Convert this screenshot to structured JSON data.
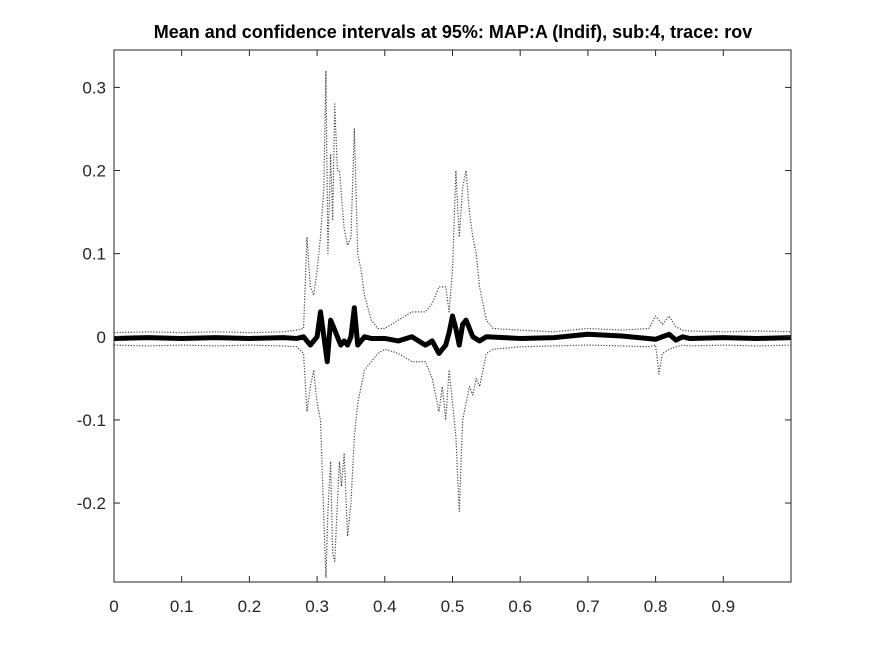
{
  "chart_data": {
    "type": "line",
    "title": "Mean and confidence intervals at 95%: MAP:A (Indif), sub:4, trace: rov",
    "xlabel": "",
    "ylabel": "",
    "xlim": [
      0,
      1
    ],
    "ylim": [
      -0.295,
      0.345
    ],
    "x_ticks": [
      0,
      0.1,
      0.2,
      0.3,
      0.4,
      0.5,
      0.6,
      0.7,
      0.8,
      0.9
    ],
    "x_tick_labels": [
      "0",
      "0.1",
      "0.2",
      "0.3",
      "0.4",
      "0.5",
      "0.6",
      "0.7",
      "0.8",
      "0.9"
    ],
    "y_ticks": [
      -0.2,
      -0.1,
      0,
      0.1,
      0.2,
      0.3
    ],
    "y_tick_labels": [
      "-0.2",
      "-0.1",
      "0",
      "0.1",
      "0.2",
      "0.3"
    ],
    "grid": false,
    "legend": "none",
    "colors": {
      "mean": "#000000",
      "ci": "#444444",
      "axes": "#262626"
    },
    "series": [
      {
        "role": "upper_ci",
        "style": "dotted",
        "x": [
          0,
          0.05,
          0.1,
          0.15,
          0.2,
          0.25,
          0.27,
          0.28,
          0.285,
          0.29,
          0.295,
          0.3,
          0.305,
          0.31,
          0.313,
          0.316,
          0.32,
          0.323,
          0.326,
          0.33,
          0.333,
          0.336,
          0.34,
          0.345,
          0.35,
          0.355,
          0.36,
          0.365,
          0.37,
          0.38,
          0.39,
          0.4,
          0.42,
          0.44,
          0.46,
          0.47,
          0.48,
          0.49,
          0.495,
          0.5,
          0.505,
          0.51,
          0.515,
          0.52,
          0.525,
          0.53,
          0.535,
          0.54,
          0.55,
          0.56,
          0.6,
          0.65,
          0.7,
          0.75,
          0.79,
          0.8,
          0.805,
          0.81,
          0.82,
          0.83,
          0.835,
          0.84,
          0.85,
          0.9,
          0.95,
          1.0
        ],
        "y": [
          0.005,
          0.006,
          0.005,
          0.006,
          0.005,
          0.006,
          0.008,
          0.01,
          0.12,
          0.06,
          0.05,
          0.08,
          0.12,
          0.18,
          0.32,
          0.1,
          0.22,
          0.14,
          0.28,
          0.2,
          0.2,
          0.17,
          0.13,
          0.11,
          0.12,
          0.25,
          0.1,
          0.08,
          0.05,
          0.02,
          0.01,
          0.01,
          0.02,
          0.03,
          0.03,
          0.04,
          0.06,
          0.06,
          0.03,
          0.08,
          0.2,
          0.12,
          0.18,
          0.2,
          0.15,
          0.12,
          0.1,
          0.06,
          0.02,
          0.01,
          0.008,
          0.006,
          0.01,
          0.008,
          0.01,
          0.025,
          0.02,
          0.015,
          0.025,
          0.012,
          0.01,
          0.008,
          0.007,
          0.006,
          0.007,
          0.006
        ]
      },
      {
        "role": "mean",
        "style": "solid-thick",
        "x": [
          0,
          0.05,
          0.1,
          0.15,
          0.2,
          0.25,
          0.27,
          0.28,
          0.29,
          0.3,
          0.305,
          0.31,
          0.315,
          0.32,
          0.325,
          0.33,
          0.335,
          0.34,
          0.345,
          0.35,
          0.355,
          0.36,
          0.37,
          0.38,
          0.4,
          0.42,
          0.44,
          0.46,
          0.47,
          0.48,
          0.49,
          0.495,
          0.5,
          0.505,
          0.51,
          0.515,
          0.52,
          0.525,
          0.53,
          0.54,
          0.55,
          0.6,
          0.65,
          0.7,
          0.75,
          0.8,
          0.81,
          0.82,
          0.83,
          0.84,
          0.85,
          0.9,
          0.95,
          1.0
        ],
        "y": [
          -0.002,
          -0.001,
          -0.002,
          -0.001,
          -0.002,
          -0.001,
          -0.002,
          0.0,
          -0.01,
          0.0,
          0.03,
          0.0,
          -0.03,
          0.02,
          0.01,
          0.0,
          -0.01,
          -0.005,
          -0.01,
          0.0,
          0.035,
          -0.01,
          0.0,
          -0.002,
          -0.002,
          -0.005,
          0.0,
          -0.01,
          -0.005,
          -0.02,
          -0.01,
          0.005,
          0.025,
          0.01,
          -0.01,
          0.015,
          0.02,
          0.01,
          0.0,
          -0.005,
          0.0,
          -0.002,
          -0.001,
          0.003,
          0.001,
          -0.003,
          0.0,
          0.003,
          -0.004,
          0.0,
          -0.002,
          -0.001,
          -0.002,
          -0.001
        ]
      },
      {
        "role": "lower_ci",
        "style": "dotted",
        "x": [
          0,
          0.05,
          0.1,
          0.15,
          0.2,
          0.25,
          0.27,
          0.28,
          0.285,
          0.29,
          0.295,
          0.3,
          0.305,
          0.31,
          0.313,
          0.316,
          0.32,
          0.323,
          0.326,
          0.33,
          0.333,
          0.336,
          0.34,
          0.345,
          0.35,
          0.355,
          0.36,
          0.365,
          0.37,
          0.38,
          0.39,
          0.4,
          0.42,
          0.44,
          0.46,
          0.47,
          0.48,
          0.485,
          0.49,
          0.495,
          0.5,
          0.505,
          0.51,
          0.515,
          0.52,
          0.525,
          0.53,
          0.535,
          0.54,
          0.55,
          0.56,
          0.6,
          0.65,
          0.7,
          0.75,
          0.79,
          0.8,
          0.805,
          0.81,
          0.82,
          0.83,
          0.84,
          0.85,
          0.9,
          0.95,
          1.0
        ],
        "y": [
          -0.01,
          -0.011,
          -0.01,
          -0.011,
          -0.01,
          -0.011,
          -0.012,
          -0.02,
          -0.09,
          -0.06,
          -0.04,
          -0.08,
          -0.1,
          -0.22,
          -0.29,
          -0.21,
          -0.15,
          -0.26,
          -0.27,
          -0.2,
          -0.15,
          -0.18,
          -0.14,
          -0.24,
          -0.2,
          -0.12,
          -0.08,
          -0.06,
          -0.04,
          -0.03,
          -0.02,
          -0.015,
          -0.02,
          -0.03,
          -0.03,
          -0.05,
          -0.09,
          -0.06,
          -0.1,
          -0.04,
          -0.08,
          -0.12,
          -0.21,
          -0.1,
          -0.08,
          -0.06,
          -0.07,
          -0.05,
          -0.06,
          -0.02,
          -0.015,
          -0.012,
          -0.011,
          -0.01,
          -0.011,
          -0.012,
          -0.01,
          -0.045,
          -0.02,
          -0.015,
          -0.012,
          -0.01,
          -0.011,
          -0.01,
          -0.011,
          -0.01
        ]
      }
    ]
  }
}
